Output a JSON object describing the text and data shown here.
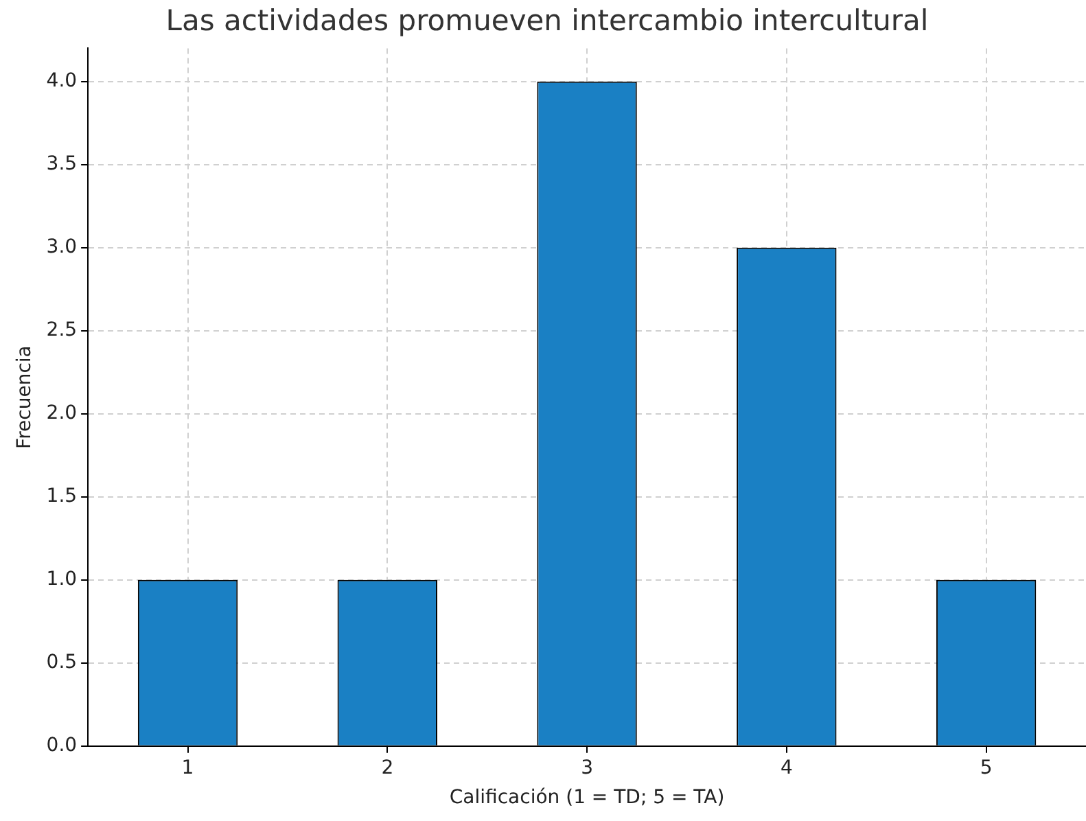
{
  "chart_data": {
    "type": "bar",
    "title": "Las actividades promueven intercambio intercultural",
    "xlabel": "Calificación (1 = TD; 5 = TA)",
    "ylabel": "Frecuencia",
    "categories": [
      "1",
      "2",
      "3",
      "4",
      "5"
    ],
    "values": [
      1,
      1,
      4,
      3,
      1
    ],
    "color": "#1a80c4",
    "ylim": [
      0,
      4.2
    ],
    "yticks": [
      {
        "value": 0,
        "label": "0.0"
      },
      {
        "value": 0.5,
        "label": "0.5"
      },
      {
        "value": 1,
        "label": "1.0"
      },
      {
        "value": 1.5,
        "label": "1.5"
      },
      {
        "value": 2,
        "label": "2.0"
      },
      {
        "value": 2.5,
        "label": "2.5"
      },
      {
        "value": 3,
        "label": "3.0"
      },
      {
        "value": 3.5,
        "label": "3.5"
      },
      {
        "value": 4,
        "label": "4.0"
      }
    ],
    "grid": true,
    "legend": false
  }
}
